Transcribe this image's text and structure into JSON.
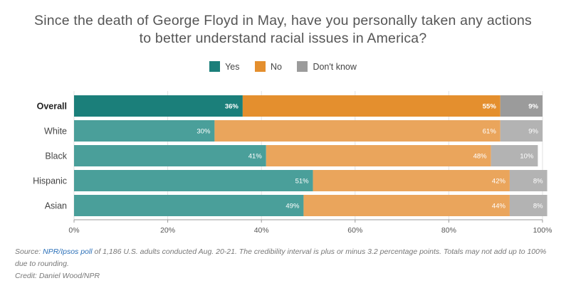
{
  "title_lines": [
    "Since the death of George Floyd in May, have you personally taken any actions",
    "to better understand racial issues in America?"
  ],
  "legend": [
    {
      "label": "Yes",
      "color": "#1b7f7a"
    },
    {
      "label": "No",
      "color": "#e48f2e"
    },
    {
      "label": "Don't know",
      "color": "#9b9b9b"
    }
  ],
  "chart_data": {
    "type": "bar",
    "orientation": "horizontal",
    "stacked": true,
    "title": "Since the death of George Floyd in May, have you personally taken any actions to better understand racial issues in America?",
    "categories": [
      "Overall",
      "White",
      "Black",
      "Hispanic",
      "Asian"
    ],
    "highlight_category": "Overall",
    "series": [
      {
        "name": "Yes",
        "values": [
          36,
          30,
          41,
          51,
          49
        ],
        "color": "#1b7f7a",
        "light_color": "#4a9f9a"
      },
      {
        "name": "No",
        "values": [
          55,
          61,
          48,
          42,
          44
        ],
        "color": "#e48f2e",
        "light_color": "#eaa55c"
      },
      {
        "name": "Don't know",
        "values": [
          9,
          9,
          10,
          8,
          8
        ],
        "color": "#9b9b9b",
        "light_color": "#b3b3b3"
      }
    ],
    "xlim": [
      0,
      100
    ],
    "xticks": [
      0,
      20,
      40,
      60,
      80,
      100
    ],
    "xtick_format": "%",
    "grid": true,
    "legend_position": "top"
  },
  "footer": {
    "source_prefix": "Source: ",
    "source_link": "NPR/Ipsos poll",
    "source_text": " of 1,186 U.S. adults conducted Aug. 20-21. The credibility interval is plus or minus 3.2 percentage points. Totals may not add up to 100% due to rounding.",
    "credit": "Credit: Daniel Wood/NPR"
  }
}
